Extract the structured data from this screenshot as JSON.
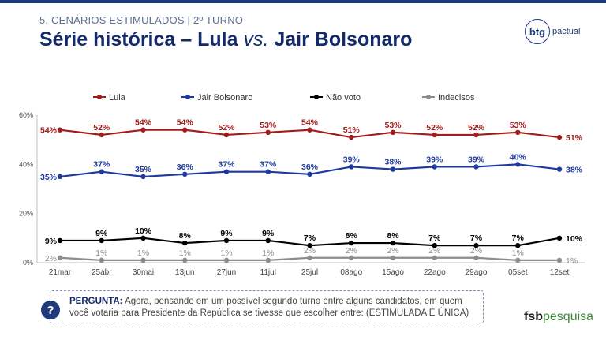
{
  "header": {
    "section": "5. CENÁRIOS ESTIMULADOS | 2º TURNO",
    "title_pre": "Série histórica – Lula ",
    "title_vs": "vs.",
    "title_post": " Jair Bolsonaro"
  },
  "logo": {
    "mark": "btg",
    "text": "pactual"
  },
  "chart_data": {
    "type": "line",
    "categories": [
      "21mar",
      "25abr",
      "30mai",
      "13jun",
      "27jun",
      "11jul",
      "25jul",
      "08ago",
      "15ago",
      "22ago",
      "29ago",
      "05set",
      "12set"
    ],
    "ylim": [
      0,
      60
    ],
    "yticks": [
      "0%",
      "20%",
      "40%",
      "60%"
    ],
    "legend_position": "top",
    "grid": false,
    "series": [
      {
        "name": "Lula",
        "color": "#a31c1c",
        "values": [
          54,
          52,
          54,
          54,
          52,
          53,
          54,
          51,
          53,
          52,
          52,
          53,
          51
        ]
      },
      {
        "name": "Jair Bolsonaro",
        "color": "#1f3a9e",
        "values": [
          35,
          37,
          35,
          36,
          37,
          37,
          36,
          39,
          38,
          39,
          39,
          40,
          38
        ]
      },
      {
        "name": "Não voto",
        "color": "#000000",
        "values": [
          9,
          9,
          10,
          8,
          9,
          9,
          7,
          8,
          8,
          7,
          7,
          7,
          10
        ]
      },
      {
        "name": "Indecisos",
        "color": "#8c8c8c",
        "values": [
          2,
          1,
          1,
          1,
          1,
          1,
          2,
          2,
          2,
          2,
          2,
          1,
          1
        ]
      }
    ]
  },
  "question": {
    "label": "PERGUNTA:",
    "text": " Agora, pensando em um possível segundo turno entre alguns candidatos, em quem você votaria para Presidente da República se tivesse que escolher entre: (ESTIMULADA E ÚNICA)",
    "icon": "question-icon",
    "icon_glyph": "?"
  },
  "footer": {
    "brand_main": "fsb",
    "brand_sub": "pesquisa"
  }
}
